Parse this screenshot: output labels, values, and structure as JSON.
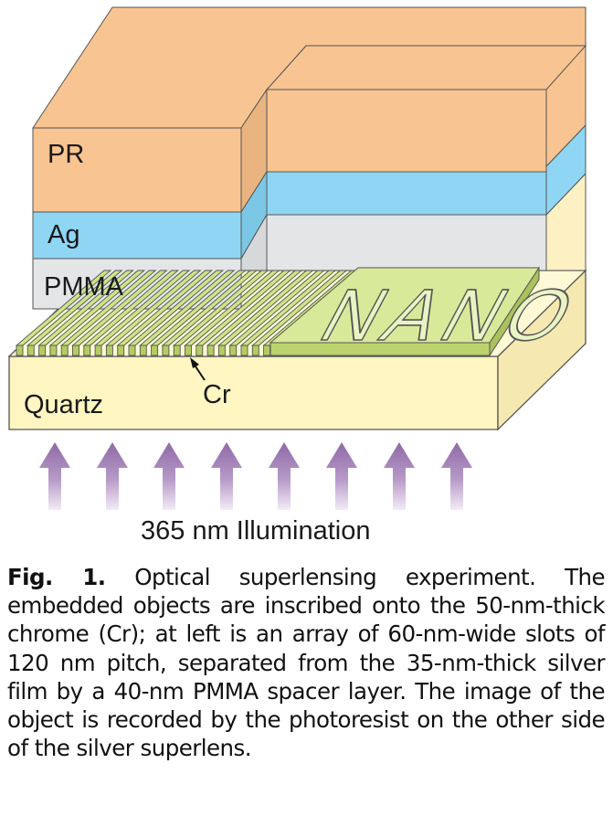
{
  "diagram": {
    "layers": {
      "pr": "PR",
      "ag": "Ag",
      "pmma": "PMMA",
      "quartz": "Quartz"
    },
    "object_text": "NANO",
    "cr_label": "Cr",
    "illumination_label": "365 nm Illumination",
    "colors": {
      "pr": "#f8c491",
      "ag": "#8fd6f4",
      "pmma": "#e3e5e7",
      "quartz": "#fff6c2",
      "cr": "#cfe486",
      "arrow": "#8f6aa6"
    }
  },
  "caption": {
    "fig_label": "Fig. 1.",
    "text": "Optical superlensing experiment. The embedded objects are inscribed onto the 50-nm-thick chrome (Cr); at left is an array of 60-nm-wide slots of 120 nm pitch, separated from the 35-nm-thick silver film by a 40-nm PMMA spacer layer. The image of the object is recorded by the photoresist on the other side of the silver superlens."
  }
}
